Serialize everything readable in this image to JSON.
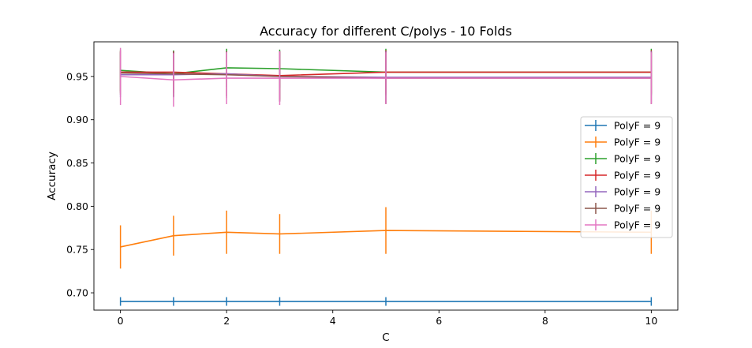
{
  "chart_data": {
    "type": "line",
    "title": "Accuracy for different C/polys - 10 Folds",
    "xlabel": "C",
    "ylabel": "Accuracy",
    "xlim": [
      -0.5,
      10.5
    ],
    "ylim": [
      0.68,
      0.99
    ],
    "xticks": [
      0,
      2,
      4,
      6,
      8,
      10
    ],
    "xtick_labels": [
      "0",
      "2",
      "4",
      "6",
      "8",
      "10"
    ],
    "yticks": [
      0.7,
      0.75,
      0.8,
      0.85,
      0.9,
      0.95
    ],
    "ytick_labels": [
      "0.70",
      "0.75",
      "0.80",
      "0.85",
      "0.90",
      "0.95"
    ],
    "grid": false,
    "legend_position": "center-right",
    "x": [
      0,
      1,
      2,
      3,
      5,
      10
    ],
    "series": [
      {
        "name": "PolyF = 9",
        "color": "#1f77b4",
        "values": [
          0.69,
          0.69,
          0.69,
          0.69,
          0.69,
          0.69
        ],
        "errors": [
          0.005,
          0.005,
          0.005,
          0.005,
          0.005,
          0.005
        ]
      },
      {
        "name": "PolyF = 9",
        "color": "#ff7f0e",
        "values": [
          0.753,
          0.766,
          0.77,
          0.768,
          0.772,
          0.77
        ],
        "errors": [
          0.025,
          0.023,
          0.025,
          0.023,
          0.027,
          0.025
        ]
      },
      {
        "name": "PolyF = 9",
        "color": "#2ca02c",
        "values": [
          0.957,
          0.953,
          0.96,
          0.959,
          0.955,
          0.955
        ],
        "errors": [
          0.024,
          0.027,
          0.022,
          0.022,
          0.027,
          0.027
        ]
      },
      {
        "name": "PolyF = 9",
        "color": "#d62728",
        "values": [
          0.955,
          0.955,
          0.953,
          0.951,
          0.955,
          0.955
        ],
        "errors": [
          0.024,
          0.024,
          0.026,
          0.028,
          0.025,
          0.025
        ]
      },
      {
        "name": "PolyF = 9",
        "color": "#9467bd",
        "values": [
          0.952,
          0.952,
          0.953,
          0.95,
          0.949,
          0.949
        ],
        "errors": [
          0.026,
          0.026,
          0.026,
          0.029,
          0.03,
          0.03
        ]
      },
      {
        "name": "PolyF = 9",
        "color": "#8c564b",
        "values": [
          0.954,
          0.953,
          0.952,
          0.95,
          0.948,
          0.948
        ],
        "errors": [
          0.025,
          0.026,
          0.027,
          0.029,
          0.03,
          0.03
        ]
      },
      {
        "name": "PolyF = 9",
        "color": "#e377c2",
        "values": [
          0.95,
          0.946,
          0.948,
          0.948,
          0.948,
          0.948
        ],
        "errors": [
          0.033,
          0.031,
          0.03,
          0.031,
          0.03,
          0.03
        ]
      }
    ]
  }
}
